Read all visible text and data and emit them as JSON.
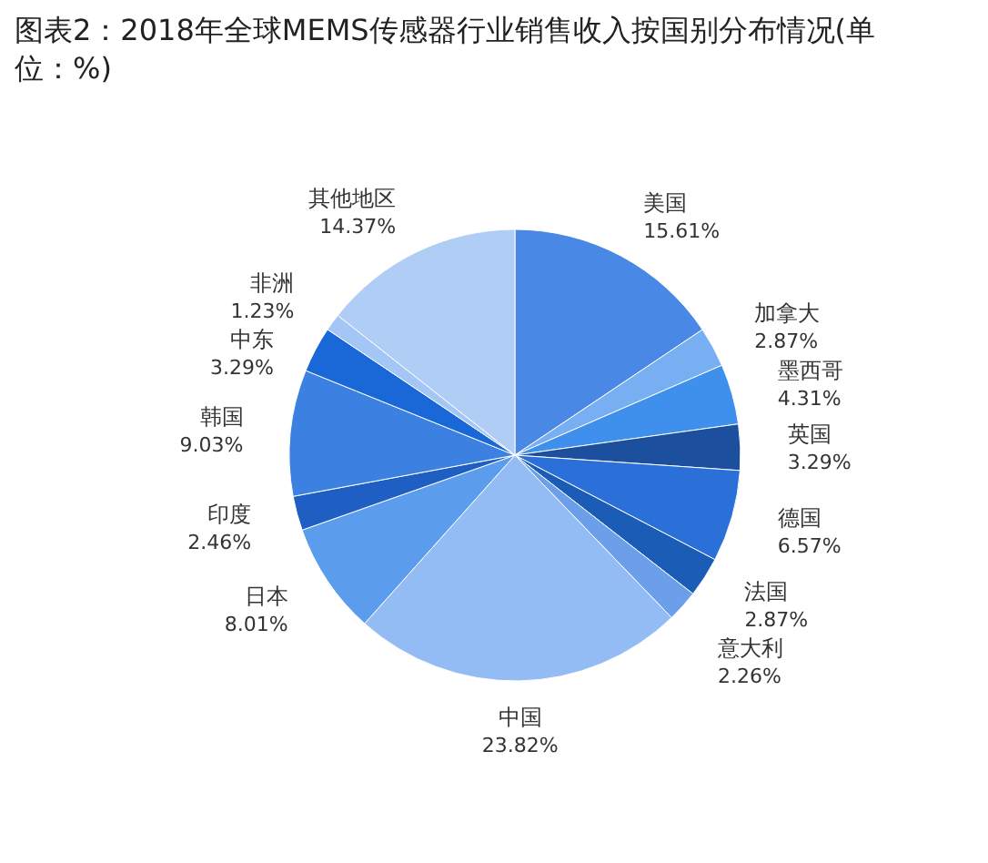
{
  "chart_data": {
    "type": "pie",
    "title": "图表2：2018年全球MEMS传感器行业销售收入按国别分布情况(单位：%)",
    "categories": [
      "美国",
      "加拿大",
      "墨西哥",
      "英国",
      "德国",
      "法国",
      "意大利",
      "中国",
      "日本",
      "印度",
      "韩国",
      "中东",
      "非洲",
      "其他地区"
    ],
    "values": [
      15.61,
      2.87,
      4.31,
      3.29,
      6.57,
      2.87,
      2.26,
      23.82,
      8.01,
      2.46,
      9.03,
      3.29,
      1.23,
      14.37
    ],
    "value_labels": [
      "15.61%",
      "2.87%",
      "4.31%",
      "3.29%",
      "6.57%",
      "2.87%",
      "2.26%",
      "23.82%",
      "8.01%",
      "2.46%",
      "9.03%",
      "3.29%",
      "1.23%",
      "14.37%"
    ],
    "colors": [
      "#4a88e6",
      "#78aef2",
      "#3f90ec",
      "#1c4f9e",
      "#2b6fd8",
      "#1b5cb6",
      "#6b9fea",
      "#94bcf4",
      "#5c9cec",
      "#1f5fc4",
      "#3c80e2",
      "#1a68d8",
      "#a3c6f6",
      "#b0cdf6"
    ]
  }
}
